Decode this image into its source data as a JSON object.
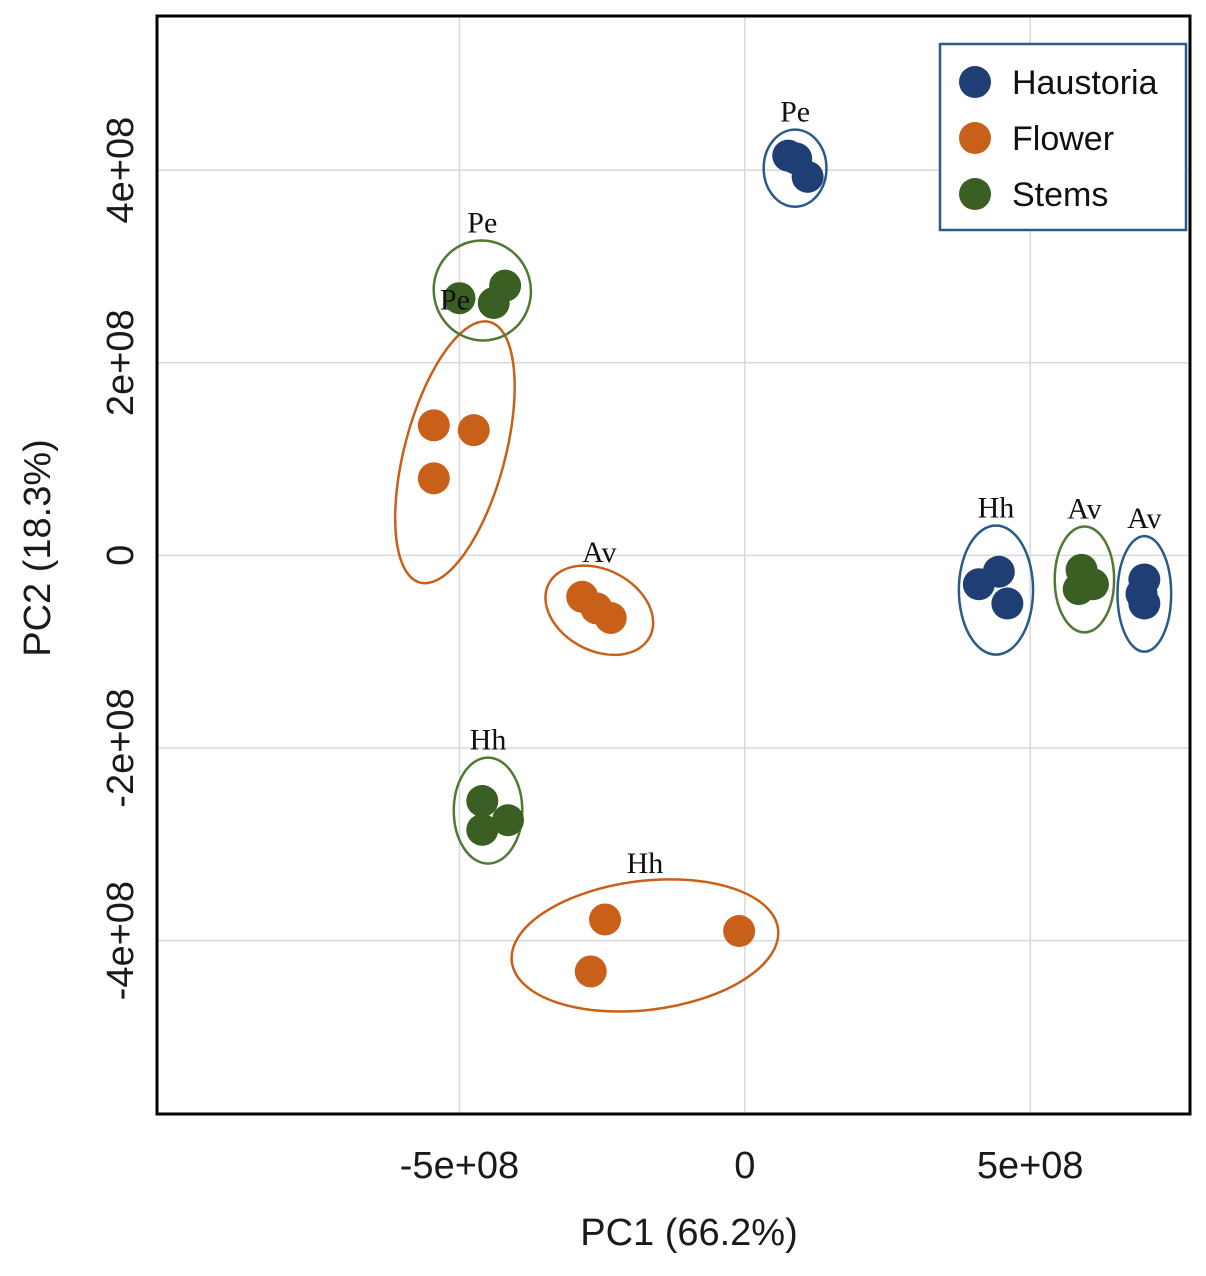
{
  "chart_data": {
    "type": "scatter",
    "title": "",
    "xlabel": "PC1 (66.2%)",
    "ylabel": "PC2 (18.3%)",
    "xlim": [
      -1030000000.0,
      780000000.0
    ],
    "ylim": [
      -580000000.0,
      560000000.0
    ],
    "xticks": [
      {
        "value": -500000000.0,
        "label": "-5e+08"
      },
      {
        "value": 0,
        "label": "0"
      },
      {
        "value": 500000000.0,
        "label": "5e+08"
      }
    ],
    "yticks": [
      {
        "value": 400000000.0,
        "label": "4e+08"
      },
      {
        "value": 200000000.0,
        "label": "2e+08"
      },
      {
        "value": 0,
        "label": "0"
      },
      {
        "value": -200000000.0,
        "label": "-2e+08"
      },
      {
        "value": -400000000.0,
        "label": "-4e+08"
      }
    ],
    "grid": true,
    "legend_position": "top-right",
    "series": [
      {
        "name": "Haustoria",
        "color": "#1f3f74",
        "ellipse_color": "#2a5a8a"
      },
      {
        "name": "Flower",
        "color": "#c8601a",
        "ellipse_color": "#c8601a"
      },
      {
        "name": "Stems",
        "color": "#3b5e22",
        "ellipse_color": "#4e7a32"
      }
    ],
    "groups": [
      {
        "series": "Haustoria",
        "label": "Pe",
        "center": [
          88000000.0,
          402000000.0
        ],
        "radii": [
          55000000.0,
          40000000.0
        ],
        "angle": 0,
        "points": [
          [
            76000000.0,
            415000000.0
          ],
          [
            90000000.0,
            412000000.0
          ],
          [
            110000000.0,
            393000000.0
          ]
        ]
      },
      {
        "series": "Haustoria",
        "label": "Hh",
        "center": [
          440000000.0,
          -36000000.0
        ],
        "radii": [
          65000000.0,
          67000000.0
        ],
        "angle": 0,
        "points": [
          [
            410000000.0,
            -30000000.0
          ],
          [
            445000000.0,
            -17000000.0
          ],
          [
            460000000.0,
            -50000000.0
          ]
        ]
      },
      {
        "series": "Haustoria",
        "label": "Av",
        "center": [
          700000000.0,
          -40000000.0
        ],
        "radii": [
          47000000.0,
          60000000.0
        ],
        "angle": 0,
        "points": [
          [
            700000000.0,
            -25000000.0
          ],
          [
            695000000.0,
            -40000000.0
          ],
          [
            700000000.0,
            -50000000.0
          ]
        ]
      },
      {
        "series": "Flower",
        "label": "Pe",
        "center": [
          -508000000.0,
          107000000.0
        ],
        "radii": [
          88000000.0,
          140000000.0
        ],
        "angle": 15,
        "points": [
          [
            -545000000.0,
            135000000.0
          ],
          [
            -475000000.0,
            130000000.0
          ],
          [
            -545000000.0,
            80000000.0
          ]
        ]
      },
      {
        "series": "Flower",
        "label": "Av",
        "center": [
          -255000000.0,
          -57000000.0
        ],
        "radii": [
          100000000.0,
          42000000.0
        ],
        "angle": 28,
        "points": [
          [
            -285000000.0,
            -43000000.0
          ],
          [
            -260000000.0,
            -55000000.0
          ],
          [
            -235000000.0,
            -65000000.0
          ]
        ]
      },
      {
        "series": "Flower",
        "label": "Hh",
        "center": [
          -175000000.0,
          -405000000.0
        ],
        "radii": [
          235000000.0,
          67000000.0
        ],
        "angle": -7,
        "points": [
          [
            -245000000.0,
            -378000000.0
          ],
          [
            -10000000.0,
            -390000000.0
          ],
          [
            -270000000.0,
            -432000000.0
          ]
        ]
      },
      {
        "series": "Stems",
        "label": "Pe",
        "center": [
          -460000000.0,
          275000000.0
        ],
        "radii": [
          85000000.0,
          52000000.0
        ],
        "angle": -15,
        "points": [
          [
            -500000000.0,
            267000000.0
          ],
          [
            -440000000.0,
            262000000.0
          ],
          [
            -420000000.0,
            280000000.0
          ]
        ]
      },
      {
        "series": "Stems",
        "label": "Av",
        "center": [
          595000000.0,
          -25000000.0
        ],
        "radii": [
          52000000.0,
          55000000.0
        ],
        "angle": 0,
        "points": [
          [
            590000000.0,
            -15000000.0
          ],
          [
            585000000.0,
            -35000000.0
          ],
          [
            610000000.0,
            -30000000.0
          ]
        ]
      },
      {
        "series": "Stems",
        "label": "Hh",
        "center": [
          -450000000.0,
          -265000000.0
        ],
        "radii": [
          60000000.0,
          55000000.0
        ],
        "angle": 0,
        "points": [
          [
            -460000000.0,
            -255000000.0
          ],
          [
            -460000000.0,
            -285000000.0
          ],
          [
            -415000000.0,
            -275000000.0
          ]
        ]
      }
    ]
  }
}
